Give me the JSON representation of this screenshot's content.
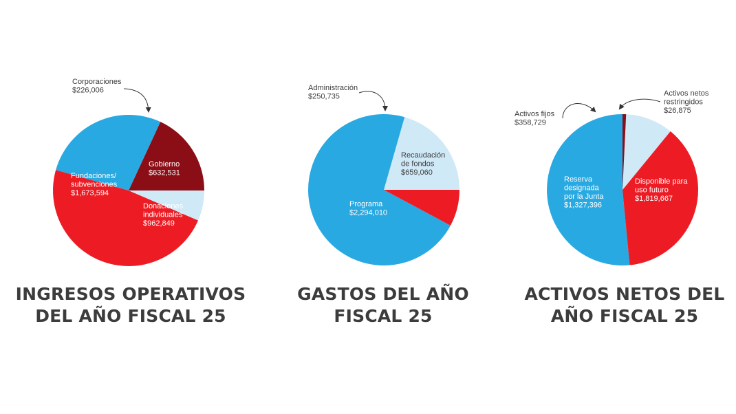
{
  "chart_data": [
    {
      "type": "pie",
      "title": [
        "INGRESOS OPERATIVOS",
        "DEL AÑO FISCAL 25"
      ],
      "slices": [
        {
          "label": [
            "Gobierno",
            "$632,531"
          ],
          "value": 632531,
          "color": "#8b0d15",
          "text_color": "#ffffff"
        },
        {
          "label": [
            "Donaciones",
            "individuales",
            "$962,849"
          ],
          "value": 962849,
          "color": "#29a9e1",
          "text_color": "#ffffff"
        },
        {
          "label": [
            "Fundaciones/",
            "subvenciones",
            "$1,673,594"
          ],
          "value": 1673594,
          "color": "#ed1c24",
          "text_color": "#ffffff"
        },
        {
          "label": [
            "Corporaciones",
            "$226,006"
          ],
          "value": 226006,
          "color": "#cfe9f7",
          "text_color": "#3c3c3c",
          "callout": true
        }
      ]
    },
    {
      "type": "pie",
      "title": [
        "GASTOS DEL AÑO",
        "FISCAL 25"
      ],
      "slices": [
        {
          "label": [
            "Recaudación",
            "de fondos",
            "$659,060"
          ],
          "value": 659060,
          "color": "#cfe9f7",
          "text_color": "#3c3c3c"
        },
        {
          "label": [
            "Programa",
            "$2,294,010"
          ],
          "value": 2294010,
          "color": "#29a9e1",
          "text_color": "#ffffff"
        },
        {
          "label": [
            "Administración",
            "$250,735"
          ],
          "value": 250735,
          "color": "#ed1c24",
          "text_color": "#3c3c3c",
          "callout": true
        }
      ]
    },
    {
      "type": "pie",
      "title": [
        "ACTIVOS NETOS DEL",
        "AÑO FISCAL 25"
      ],
      "slices": [
        {
          "label": [
            "Disponible para",
            "uso futuro",
            "$1,819,667"
          ],
          "value": 1819667,
          "color": "#29a9e1",
          "text_color": "#ffffff"
        },
        {
          "label": [
            "Reserva",
            "designada",
            "por la Junta",
            "$1,327,396"
          ],
          "value": 1327396,
          "color": "#ed1c24",
          "text_color": "#ffffff"
        },
        {
          "label": [
            "Activos fijos",
            "$358,729"
          ],
          "value": 358729,
          "color": "#cfe9f7",
          "text_color": "#3c3c3c",
          "callout": true
        },
        {
          "label": [
            "Activos netos",
            "restringidos",
            "$26,875"
          ],
          "value": 26875,
          "color": "#8b0d15",
          "text_color": "#3c3c3c",
          "callout": true
        }
      ]
    }
  ]
}
